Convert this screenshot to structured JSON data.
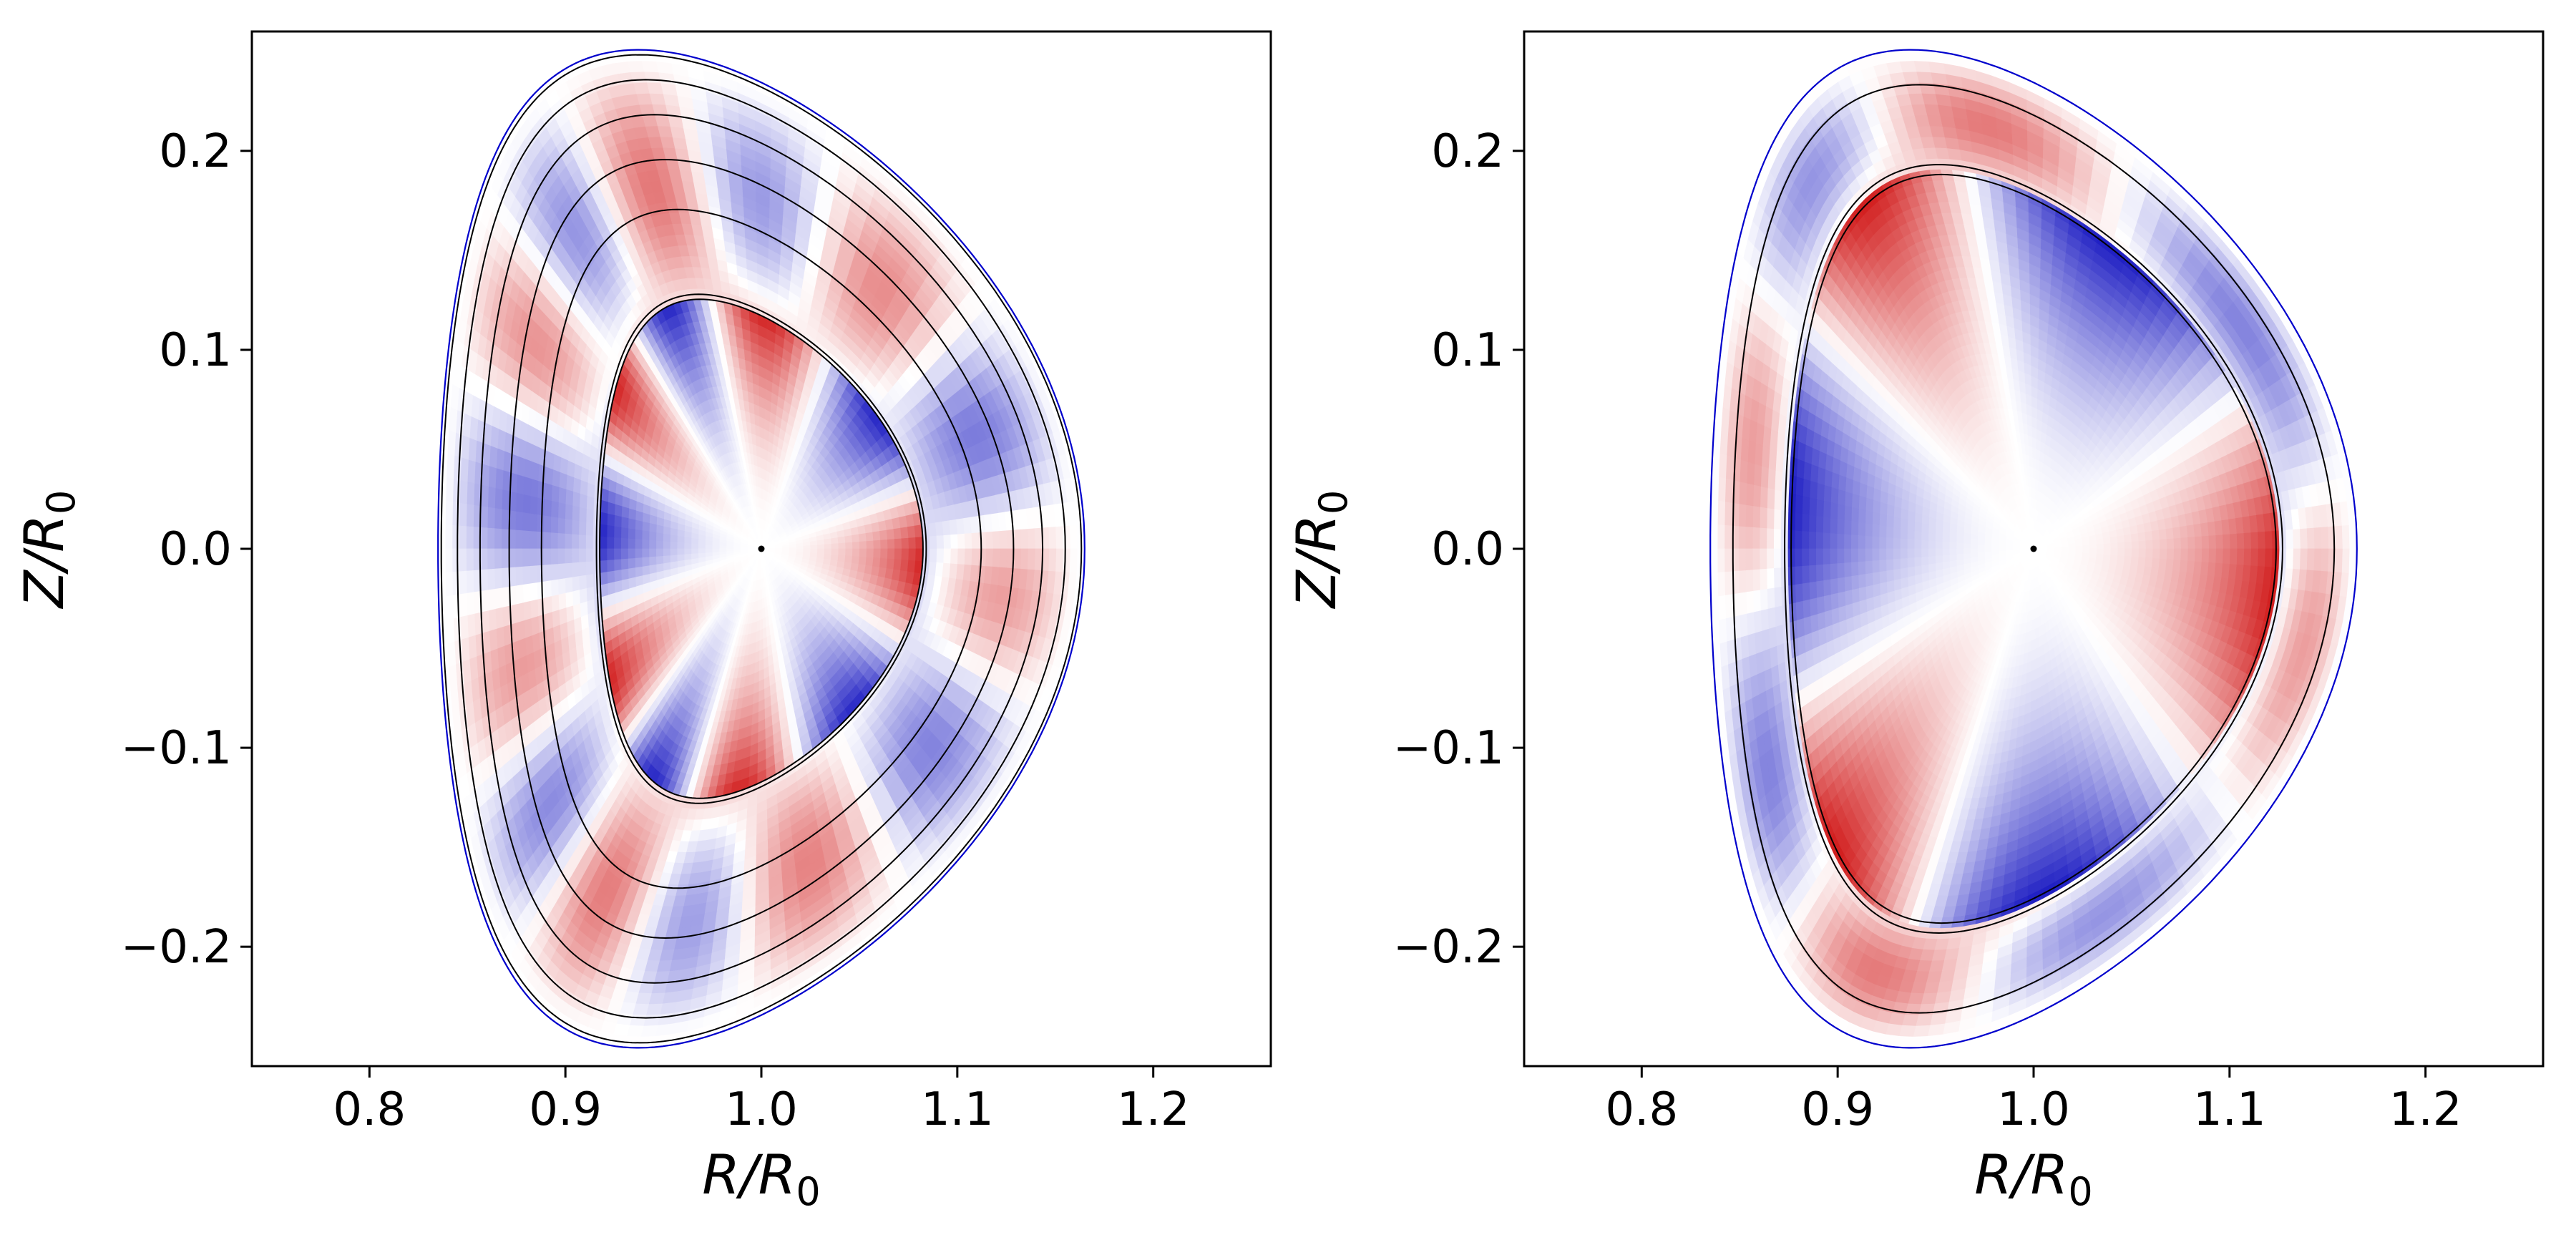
{
  "chart_data": [
    {
      "type": "contour",
      "panel": "left",
      "title": "",
      "xlabel_main": "R/R",
      "xlabel_sub": "0",
      "ylabel_main": "Z/R",
      "ylabel_sub": "0",
      "xlim": [
        0.74,
        1.26
      ],
      "ylim": [
        -0.26,
        0.26
      ],
      "xticks": [
        0.8,
        0.9,
        1.0,
        1.1,
        1.2
      ],
      "xtick_labels": [
        "0.8",
        "0.9",
        "1.0",
        "1.1",
        "1.2"
      ],
      "yticks": [
        0.2,
        0.1,
        0.0,
        -0.1,
        -0.2
      ],
      "ytick_labels": [
        "0.2",
        "0.1",
        "0.0",
        "−0.1",
        "−0.2"
      ],
      "colormap": [
        "#0000bb",
        "#ffffff",
        "#cc0000"
      ],
      "boundary_color": "#0000cc",
      "magnetic_axis": [
        1.0,
        0.0
      ],
      "shape": {
        "center": 1.0,
        "minor_radius": 0.165,
        "elongation": 1.52,
        "triangularity": 0.38
      },
      "flux_surfaces": [
        0.5,
        0.51,
        0.68,
        0.78,
        0.87,
        0.94,
        0.99
      ],
      "mode_pattern": {
        "inner_m": 5,
        "outer_m": 7,
        "inner_edge": 0.51
      }
    },
    {
      "type": "contour",
      "panel": "right",
      "title": "",
      "xlabel_main": "R/R",
      "xlabel_sub": "0",
      "ylabel_main": "Z/R",
      "ylabel_sub": "0",
      "xlim": [
        0.74,
        1.26
      ],
      "ylim": [
        -0.26,
        0.26
      ],
      "xticks": [
        0.8,
        0.9,
        1.0,
        1.1,
        1.2
      ],
      "xtick_labels": [
        "0.8",
        "0.9",
        "1.0",
        "1.1",
        "1.2"
      ],
      "yticks": [
        0.2,
        0.1,
        0.0,
        -0.1,
        -0.2
      ],
      "ytick_labels": [
        "0.2",
        "0.1",
        "0.0",
        "−0.1",
        "−0.2"
      ],
      "colormap": [
        "#0000bb",
        "#ffffff",
        "#cc0000"
      ],
      "boundary_color": "#0000cc",
      "magnetic_axis": [
        1.0,
        0.0
      ],
      "shape": {
        "center": 1.0,
        "minor_radius": 0.165,
        "elongation": 1.52,
        "triangularity": 0.38
      },
      "flux_surfaces": [
        0.75,
        0.77,
        0.93
      ],
      "mode_pattern": {
        "inner_m": 3,
        "outer_m": 4,
        "inner_edge": 0.76
      }
    }
  ]
}
